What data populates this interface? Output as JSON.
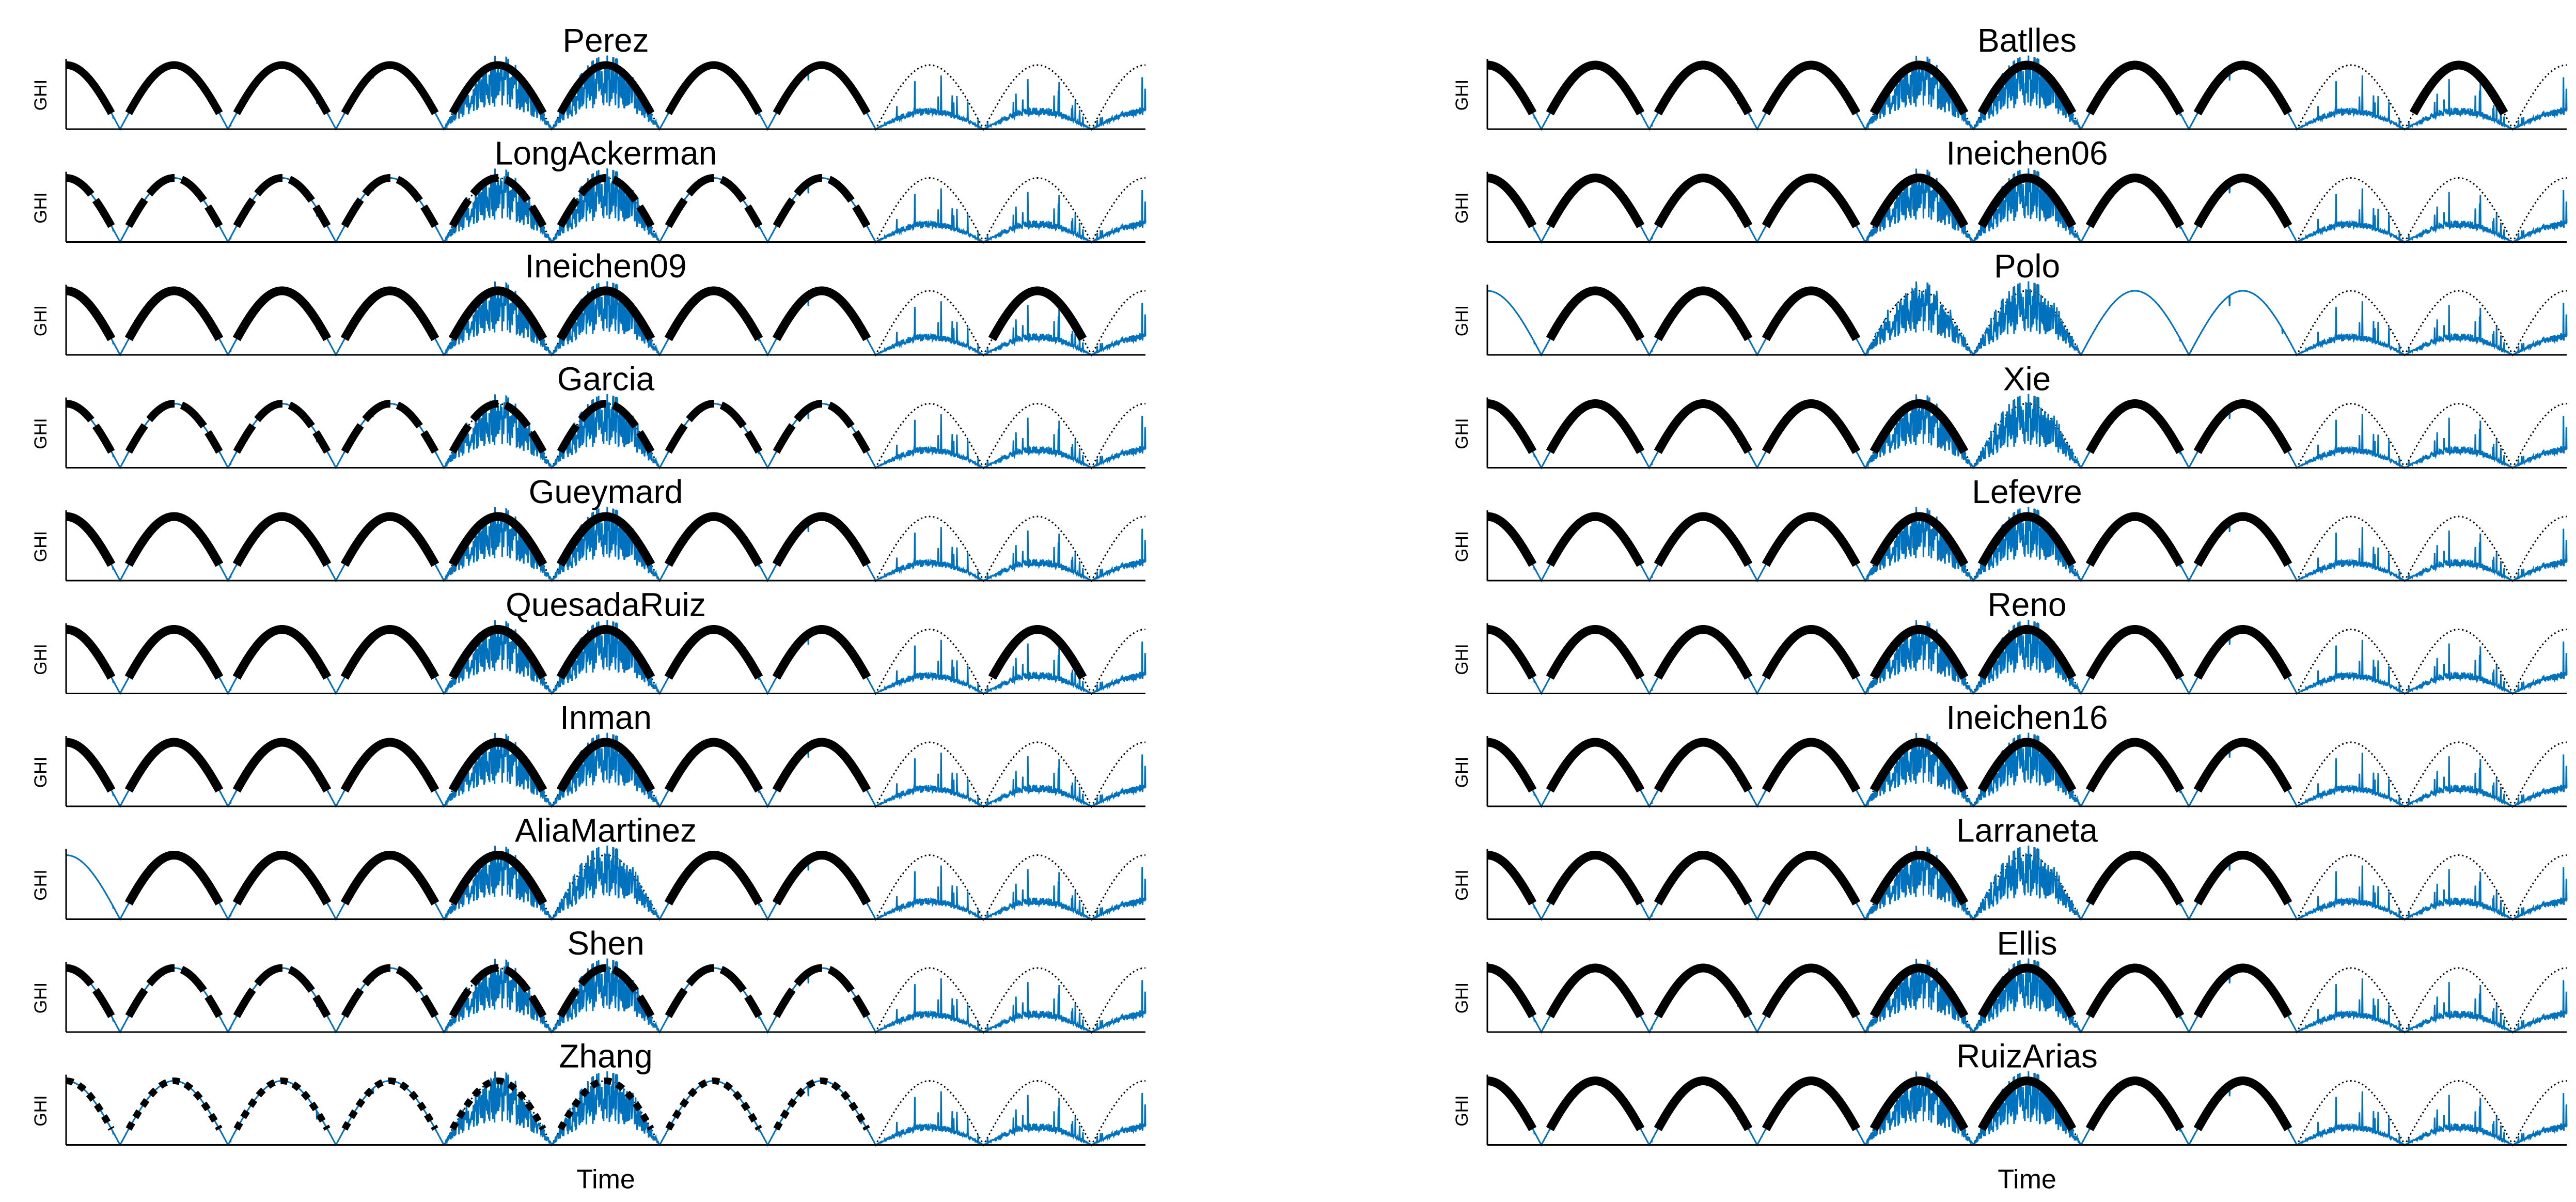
{
  "chart_data": {
    "type": "line",
    "layout": "small-multiples grid, 10 rows x 2 columns",
    "xlabel": "Time",
    "ylabel": "GHI",
    "grid": false,
    "legend": "none",
    "colors": {
      "measured": "#0072BD",
      "clear_sky_model": "#000000",
      "detected_clear_sky": "#000000",
      "axes": "#000000"
    },
    "days": 10,
    "cloudy_days": [
      4,
      5,
      8,
      9
    ],
    "panels": [
      {
        "name": "Perez",
        "column": 0,
        "row": 0,
        "detected_days": [
          0,
          1,
          2,
          3,
          4,
          5,
          6,
          7
        ],
        "marker": "medium"
      },
      {
        "name": "LongAckerman",
        "column": 0,
        "row": 1,
        "detected_days": [
          0,
          1,
          2,
          3,
          4,
          5,
          6,
          7
        ],
        "marker": "broken"
      },
      {
        "name": "Ineichen09",
        "column": 0,
        "row": 2,
        "detected_days": [
          0,
          1,
          2,
          3,
          4,
          5,
          6,
          7,
          9
        ],
        "marker": "heavy"
      },
      {
        "name": "Garcia",
        "column": 0,
        "row": 3,
        "detected_days": [
          0,
          1,
          2,
          3,
          4,
          5,
          6,
          7
        ],
        "marker": "broken"
      },
      {
        "name": "Gueymard",
        "column": 0,
        "row": 4,
        "detected_days": [
          0,
          1,
          2,
          3,
          4,
          5,
          6,
          7
        ],
        "marker": "heavy"
      },
      {
        "name": "QuesadaRuiz",
        "column": 0,
        "row": 5,
        "detected_days": [
          0,
          1,
          2,
          3,
          4,
          5,
          6,
          7,
          9
        ],
        "marker": "heavy"
      },
      {
        "name": "Inman",
        "column": 0,
        "row": 6,
        "detected_days": [
          0,
          1,
          2,
          3,
          4,
          5,
          6,
          7
        ],
        "marker": "heavy"
      },
      {
        "name": "AliaMartinez",
        "column": 0,
        "row": 7,
        "detected_days": [
          1,
          2,
          3,
          4,
          6,
          7
        ],
        "marker": "heavy"
      },
      {
        "name": "Shen",
        "column": 0,
        "row": 8,
        "detected_days": [
          0,
          1,
          2,
          3,
          4,
          5,
          6,
          7
        ],
        "marker": "broken"
      },
      {
        "name": "Zhang",
        "column": 0,
        "row": 9,
        "detected_days": [
          0,
          1,
          2,
          3,
          4,
          5,
          6,
          7
        ],
        "marker": "dotted"
      },
      {
        "name": "Batlles",
        "column": 1,
        "row": 0,
        "detected_days": [
          0,
          1,
          2,
          3,
          4,
          5,
          6,
          7,
          9
        ],
        "marker": "heavy"
      },
      {
        "name": "Ineichen06",
        "column": 1,
        "row": 1,
        "detected_days": [
          0,
          1,
          2,
          3,
          4,
          5,
          6,
          7
        ],
        "marker": "heavy"
      },
      {
        "name": "Polo",
        "column": 1,
        "row": 2,
        "detected_days": [
          1,
          2,
          3
        ],
        "marker": "heavy"
      },
      {
        "name": "Xie",
        "column": 1,
        "row": 3,
        "detected_days": [
          0,
          1,
          2,
          3,
          4,
          6,
          7
        ],
        "marker": "heavy"
      },
      {
        "name": "Lefevre",
        "column": 1,
        "row": 4,
        "detected_days": [
          0,
          1,
          2,
          3,
          4,
          5,
          6,
          7
        ],
        "marker": "heavy"
      },
      {
        "name": "Reno",
        "column": 1,
        "row": 5,
        "detected_days": [
          0,
          1,
          2,
          3,
          4,
          5,
          6,
          7
        ],
        "marker": "heavy"
      },
      {
        "name": "Ineichen16",
        "column": 1,
        "row": 6,
        "detected_days": [
          0,
          1,
          2,
          3,
          4,
          5,
          6,
          7
        ],
        "marker": "heavy"
      },
      {
        "name": "Larraneta",
        "column": 1,
        "row": 7,
        "detected_days": [
          0,
          1,
          2,
          3,
          4,
          6,
          7
        ],
        "marker": "heavy"
      },
      {
        "name": "Ellis",
        "column": 1,
        "row": 8,
        "detected_days": [
          0,
          1,
          2,
          3,
          4,
          5,
          6,
          7
        ],
        "marker": "heavy"
      },
      {
        "name": "RuizArias",
        "column": 1,
        "row": 9,
        "detected_days": [
          0,
          1,
          2,
          3,
          4,
          5,
          6,
          7
        ],
        "marker": "heavy"
      }
    ]
  }
}
